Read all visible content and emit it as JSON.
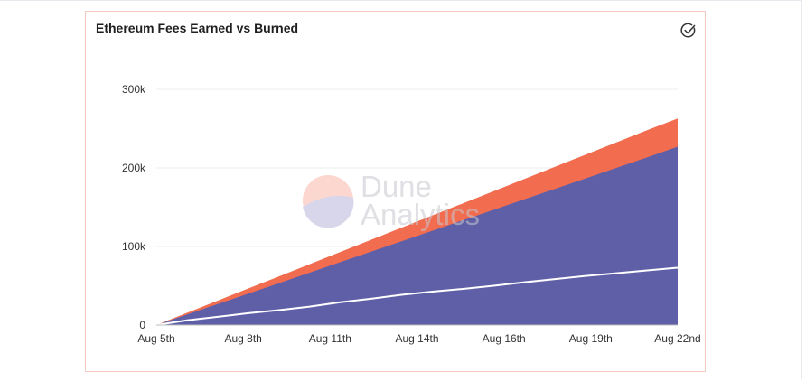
{
  "card": {
    "title": "Ethereum Fees Earned vs Burned",
    "action_icon": "check-circle-icon"
  },
  "watermark": {
    "line1": "Dune",
    "line2": "Analytics"
  },
  "colors": {
    "earned": "#f26c4f",
    "burned": "#5f5fa8",
    "line": "#ffffff",
    "grid": "#ececec"
  },
  "chart_data": {
    "type": "area",
    "title": "Ethereum Fees Earned vs Burned",
    "xlabel": "",
    "ylabel": "",
    "x_ticks": [
      "Aug 5th",
      "Aug 8th",
      "Aug 11th",
      "Aug 14th",
      "Aug 16th",
      "Aug 19th",
      "Aug 22nd"
    ],
    "y_ticks": [
      "0",
      "100k",
      "200k",
      "300k"
    ],
    "ylim": [
      0,
      300000
    ],
    "grid": true,
    "x": [
      "Aug 5th",
      "Aug 6th",
      "Aug 7th",
      "Aug 8th",
      "Aug 9th",
      "Aug 10th",
      "Aug 11th",
      "Aug 12th",
      "Aug 13th",
      "Aug 14th",
      "Aug 15th",
      "Aug 16th",
      "Aug 17th",
      "Aug 18th",
      "Aug 19th",
      "Aug 20th",
      "Aug 21st",
      "Aug 22nd"
    ],
    "series": [
      {
        "values": [
          0,
          15500,
          31000,
          46500,
          62000,
          77500,
          93000,
          108500,
          124000,
          139500,
          155000,
          170500,
          186000,
          201500,
          217000,
          232500,
          248000,
          263000
        ]
      },
      {
        "values": [
          0,
          13300,
          26700,
          40000,
          53300,
          66700,
          80000,
          93300,
          106700,
          120000,
          133300,
          146700,
          160000,
          173300,
          186700,
          200000,
          213300,
          227000
        ]
      },
      {
        "values": [
          0,
          6000,
          10500,
          15000,
          19000,
          23500,
          29000,
          33500,
          38500,
          42500,
          46000,
          50000,
          54500,
          58500,
          62500,
          66000,
          69500,
          73000
        ]
      }
    ]
  }
}
